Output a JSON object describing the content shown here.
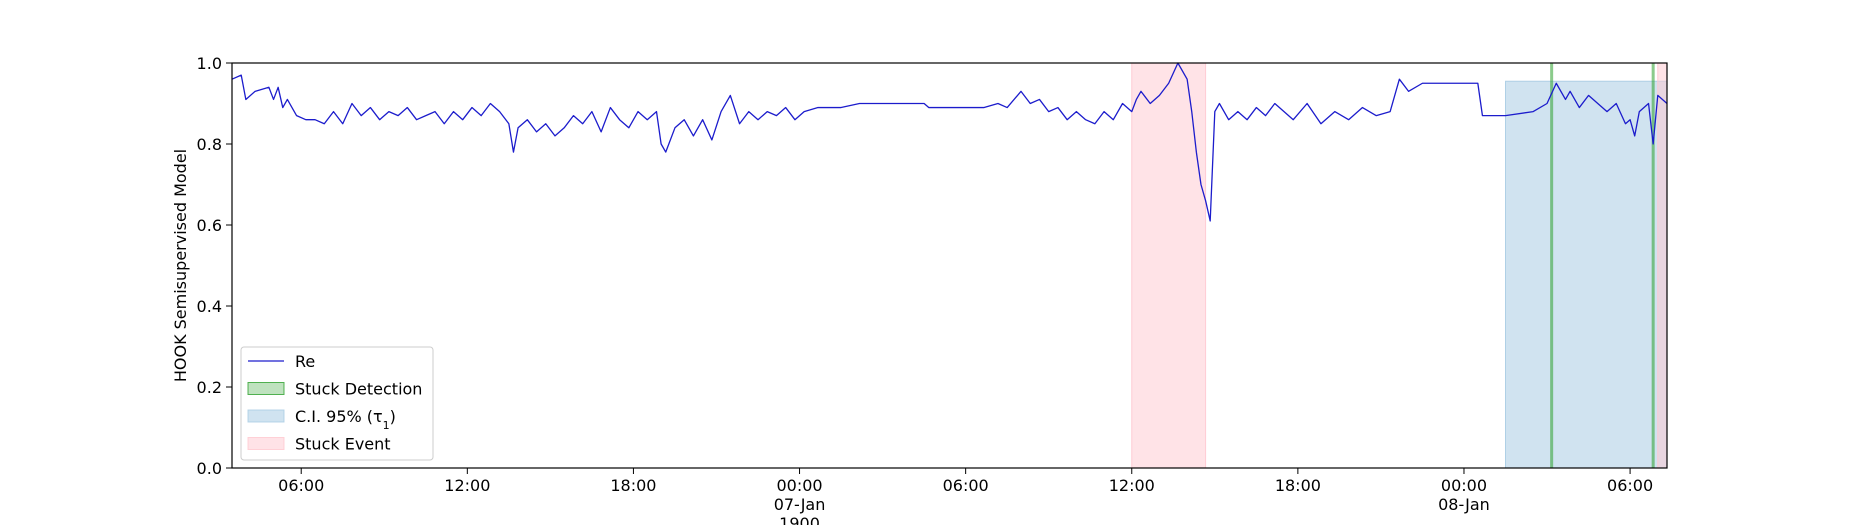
{
  "chart_data": {
    "type": "line",
    "ylabel": "HOOK Semisupervised Model",
    "xlabel": "",
    "ylim": [
      0.0,
      1.0
    ],
    "xlim": [
      "1900-01-06 03:30",
      "1900-01-08 07:20"
    ],
    "yticks": [
      "0.0",
      "0.2",
      "0.4",
      "0.6",
      "0.8",
      "1.0"
    ],
    "xticks": [
      {
        "at": "1900-01-06 06:00",
        "label": "06:00",
        "sublabel": ""
      },
      {
        "at": "1900-01-06 12:00",
        "label": "12:00",
        "sublabel": ""
      },
      {
        "at": "1900-01-06 18:00",
        "label": "18:00",
        "sublabel": ""
      },
      {
        "at": "1900-01-07 00:00",
        "label": "00:00",
        "sublabel": "07-Jan"
      },
      {
        "at": "1900-01-07 06:00",
        "label": "06:00",
        "sublabel": ""
      },
      {
        "at": "1900-01-07 12:00",
        "label": "12:00",
        "sublabel": ""
      },
      {
        "at": "1900-01-07 18:00",
        "label": "18:00",
        "sublabel": ""
      },
      {
        "at": "1900-01-08 00:00",
        "label": "00:00",
        "sublabel": "08-Jan"
      },
      {
        "at": "1900-01-08 06:00",
        "label": "06:00",
        "sublabel": ""
      }
    ],
    "xaxis_offset_text": "1900",
    "grid": false,
    "legend_placement": "lower-left",
    "legend": [
      {
        "key": "re",
        "label": "Re",
        "kind": "line"
      },
      {
        "key": "stuck_detection",
        "label": "Stuck Detection",
        "kind": "patch"
      },
      {
        "key": "ci",
        "label": "C.I. 95% (τ",
        "subscript": "1",
        "suffix": ")",
        "kind": "patch"
      },
      {
        "key": "stuck_event",
        "label": "Stuck Event",
        "kind": "patch"
      }
    ],
    "colors": {
      "re": "#1c1ccc",
      "stuck_detection": "#2ca02c",
      "ci": "#a9cce3",
      "stuck_event": "#ffc8d0"
    },
    "series": [
      {
        "name": "Re",
        "x": [
          "1900-01-06 03:30",
          "1900-01-06 03:50",
          "1900-01-06 04:00",
          "1900-01-06 04:20",
          "1900-01-06 04:50",
          "1900-01-06 05:00",
          "1900-01-06 05:10",
          "1900-01-06 05:20",
          "1900-01-06 05:30",
          "1900-01-06 05:50",
          "1900-01-06 06:10",
          "1900-01-06 06:30",
          "1900-01-06 06:50",
          "1900-01-06 07:10",
          "1900-01-06 07:30",
          "1900-01-06 07:50",
          "1900-01-06 08:10",
          "1900-01-06 08:30",
          "1900-01-06 08:50",
          "1900-01-06 09:10",
          "1900-01-06 09:30",
          "1900-01-06 09:50",
          "1900-01-06 10:10",
          "1900-01-06 10:30",
          "1900-01-06 10:50",
          "1900-01-06 11:10",
          "1900-01-06 11:30",
          "1900-01-06 11:50",
          "1900-01-06 12:10",
          "1900-01-06 12:30",
          "1900-01-06 12:50",
          "1900-01-06 13:10",
          "1900-01-06 13:30",
          "1900-01-06 13:40",
          "1900-01-06 13:50",
          "1900-01-06 14:10",
          "1900-01-06 14:30",
          "1900-01-06 14:50",
          "1900-01-06 15:10",
          "1900-01-06 15:30",
          "1900-01-06 15:50",
          "1900-01-06 16:10",
          "1900-01-06 16:30",
          "1900-01-06 16:50",
          "1900-01-06 17:10",
          "1900-01-06 17:30",
          "1900-01-06 17:50",
          "1900-01-06 18:10",
          "1900-01-06 18:30",
          "1900-01-06 18:50",
          "1900-01-06 19:00",
          "1900-01-06 19:10",
          "1900-01-06 19:30",
          "1900-01-06 19:50",
          "1900-01-06 20:10",
          "1900-01-06 20:30",
          "1900-01-06 20:50",
          "1900-01-06 21:10",
          "1900-01-06 21:30",
          "1900-01-06 21:50",
          "1900-01-06 22:10",
          "1900-01-06 22:30",
          "1900-01-06 22:50",
          "1900-01-06 23:10",
          "1900-01-06 23:30",
          "1900-01-06 23:50",
          "1900-01-07 00:10",
          "1900-01-07 00:40",
          "1900-01-07 01:30",
          "1900-01-07 02:10",
          "1900-01-07 04:30",
          "1900-01-07 04:40",
          "1900-01-07 06:40",
          "1900-01-07 07:10",
          "1900-01-07 07:30",
          "1900-01-07 08:00",
          "1900-01-07 08:20",
          "1900-01-07 08:40",
          "1900-01-07 09:00",
          "1900-01-07 09:20",
          "1900-01-07 09:40",
          "1900-01-07 10:00",
          "1900-01-07 10:20",
          "1900-01-07 10:40",
          "1900-01-07 11:00",
          "1900-01-07 11:20",
          "1900-01-07 11:40",
          "1900-01-07 12:00",
          "1900-01-07 12:10",
          "1900-01-07 12:20",
          "1900-01-07 12:40",
          "1900-01-07 13:00",
          "1900-01-07 13:20",
          "1900-01-07 13:40",
          "1900-01-07 14:00",
          "1900-01-07 14:10",
          "1900-01-07 14:20",
          "1900-01-07 14:30",
          "1900-01-07 14:40",
          "1900-01-07 14:50",
          "1900-01-07 15:00",
          "1900-01-07 15:10",
          "1900-01-07 15:30",
          "1900-01-07 15:50",
          "1900-01-07 16:10",
          "1900-01-07 16:30",
          "1900-01-07 16:50",
          "1900-01-07 17:10",
          "1900-01-07 17:30",
          "1900-01-07 17:50",
          "1900-01-07 18:20",
          "1900-01-07 18:50",
          "1900-01-07 19:20",
          "1900-01-07 19:50",
          "1900-01-07 20:20",
          "1900-01-07 20:50",
          "1900-01-07 21:20",
          "1900-01-07 21:40",
          "1900-01-07 22:00",
          "1900-01-07 22:30",
          "1900-01-08 00:30",
          "1900-01-08 00:40",
          "1900-01-08 01:30",
          "1900-01-08 02:30",
          "1900-01-08 03:00",
          "1900-01-08 03:20",
          "1900-01-08 03:40",
          "1900-01-08 03:50",
          "1900-01-08 04:10",
          "1900-01-08 04:30",
          "1900-01-08 04:50",
          "1900-01-08 05:10",
          "1900-01-08 05:30",
          "1900-01-08 05:50",
          "1900-01-08 06:00",
          "1900-01-08 06:10",
          "1900-01-08 06:20",
          "1900-01-08 06:40",
          "1900-01-08 06:50",
          "1900-01-08 07:00",
          "1900-01-08 07:20"
        ],
        "y": [
          0.96,
          0.97,
          0.91,
          0.93,
          0.94,
          0.91,
          0.94,
          0.89,
          0.91,
          0.87,
          0.86,
          0.86,
          0.85,
          0.88,
          0.85,
          0.9,
          0.87,
          0.89,
          0.86,
          0.88,
          0.87,
          0.89,
          0.86,
          0.87,
          0.88,
          0.85,
          0.88,
          0.86,
          0.89,
          0.87,
          0.9,
          0.88,
          0.85,
          0.78,
          0.84,
          0.86,
          0.83,
          0.85,
          0.82,
          0.84,
          0.87,
          0.85,
          0.88,
          0.83,
          0.89,
          0.86,
          0.84,
          0.88,
          0.86,
          0.88,
          0.8,
          0.78,
          0.84,
          0.86,
          0.82,
          0.86,
          0.81,
          0.88,
          0.92,
          0.85,
          0.88,
          0.86,
          0.88,
          0.87,
          0.89,
          0.86,
          0.88,
          0.89,
          0.89,
          0.9,
          0.9,
          0.89,
          0.89,
          0.9,
          0.89,
          0.93,
          0.9,
          0.91,
          0.88,
          0.89,
          0.86,
          0.88,
          0.86,
          0.85,
          0.88,
          0.86,
          0.9,
          0.88,
          0.91,
          0.93,
          0.9,
          0.92,
          0.95,
          1.0,
          0.96,
          0.88,
          0.78,
          0.7,
          0.66,
          0.61,
          0.88,
          0.9,
          0.86,
          0.88,
          0.86,
          0.89,
          0.87,
          0.9,
          0.88,
          0.86,
          0.9,
          0.85,
          0.88,
          0.86,
          0.89,
          0.87,
          0.88,
          0.96,
          0.93,
          0.95,
          0.95,
          0.87,
          0.87,
          0.88,
          0.9,
          0.95,
          0.91,
          0.93,
          0.89,
          0.92,
          0.9,
          0.88,
          0.9,
          0.85,
          0.86,
          0.82,
          0.88,
          0.9,
          0.8,
          0.92,
          0.9
        ]
      }
    ],
    "shaded_regions": [
      {
        "key": "stuck_event",
        "start": "1900-01-07 12:00",
        "end": "1900-01-07 14:40",
        "ymin": 0.0,
        "ymax": 1.0
      },
      {
        "key": "ci",
        "start": "1900-01-08 01:30",
        "end": "1900-01-08 07:20",
        "ymin": 0.0,
        "ymax": 0.955
      },
      {
        "key": "stuck_event",
        "start": "1900-01-08 07:00",
        "end": "1900-01-08 07:20",
        "ymin": 0.0,
        "ymax": 1.0
      }
    ],
    "detection_lines": [
      {
        "key": "stuck_detection",
        "at": "1900-01-08 03:10"
      },
      {
        "key": "stuck_detection",
        "at": "1900-01-08 06:50"
      }
    ]
  }
}
